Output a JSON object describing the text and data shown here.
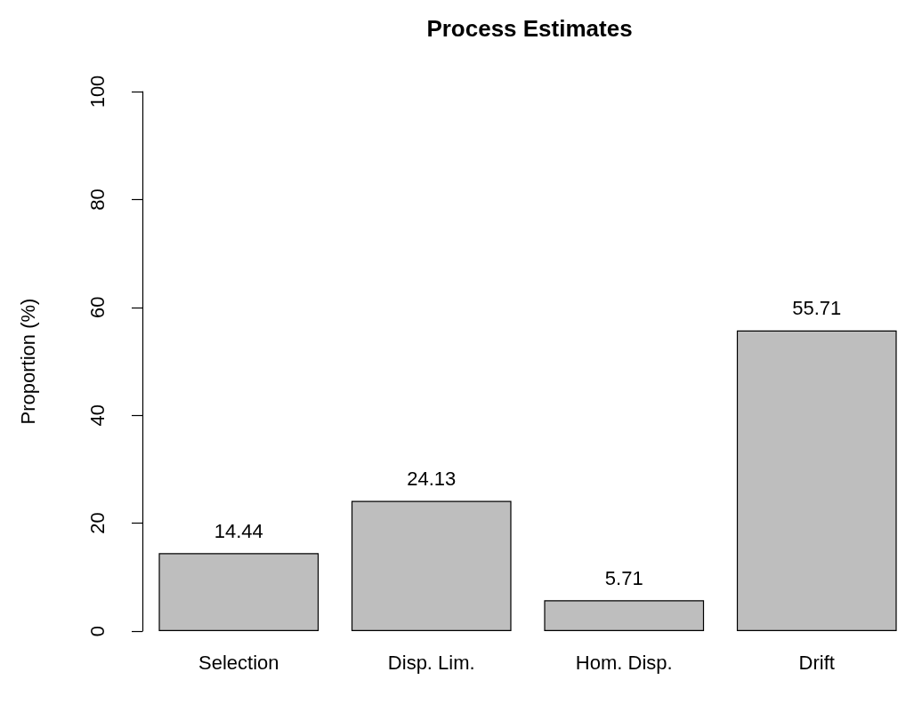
{
  "chart_data": {
    "type": "bar",
    "title": "Process Estimates",
    "ylabel": "Proportion (%)",
    "categories": [
      "Selection",
      "Disp. Lim.",
      "Hom. Disp.",
      "Drift"
    ],
    "values": [
      14.44,
      24.13,
      5.71,
      55.71
    ],
    "color": "#bebebe",
    "ylim": [
      0,
      100
    ],
    "yticks": [
      0,
      20,
      40,
      60,
      80,
      100
    ],
    "data_labels": true
  }
}
